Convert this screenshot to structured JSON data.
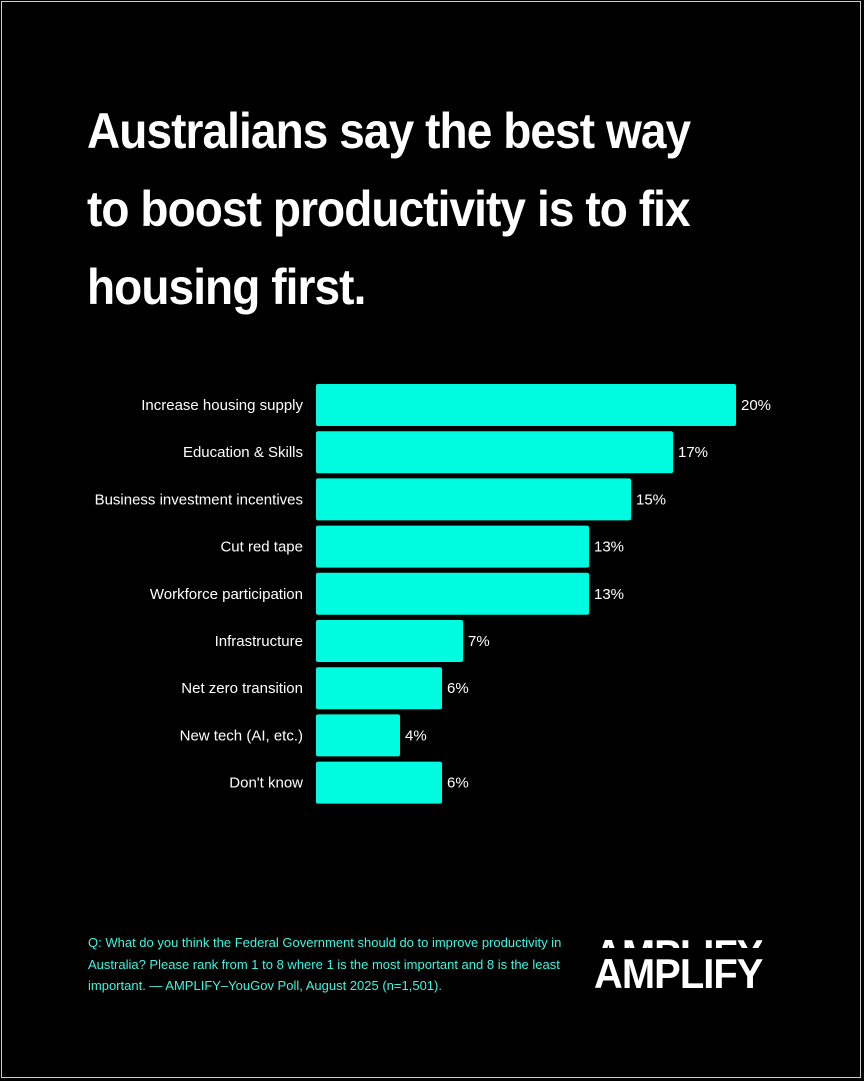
{
  "title": "Australians say the best way to boost productivity is to fix housing first.",
  "footnote": "Q: What do you think the Federal Government should do to improve productivity in Australia? Please rank from 1 to 8 where 1 is the most important and 8 is the least important. — AMPLIFY–YouGov Poll, August 2025 (n=1,501).",
  "logo": {
    "text": "AMPLIFY"
  },
  "colors": {
    "background": "#000000",
    "bar": "#00fce0",
    "text": "#ffffff",
    "footnote": "#3ef5df"
  },
  "chart_data": {
    "type": "bar",
    "orientation": "horizontal",
    "categories": [
      "Increase housing supply",
      "Education & Skills",
      "Business investment incentives",
      "Cut red tape",
      "Workforce participation",
      "Infrastructure",
      "Net zero transition",
      "New tech (AI, etc.)",
      "Don't know"
    ],
    "values": [
      20,
      17,
      15,
      13,
      13,
      7,
      6,
      4,
      6
    ],
    "value_labels": [
      "20%",
      "17%",
      "15%",
      "13%",
      "13%",
      "7%",
      "6%",
      "4%",
      "6%"
    ],
    "unit": "%",
    "xlim": [
      0,
      20
    ],
    "grid": false,
    "legend": "none"
  }
}
